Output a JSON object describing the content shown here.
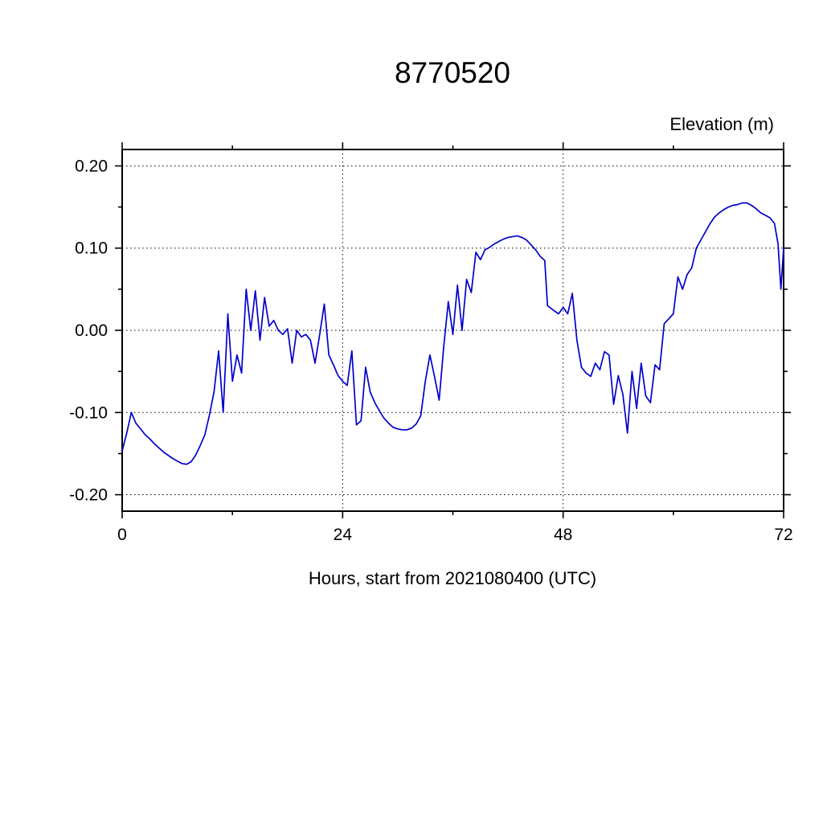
{
  "chart_data": {
    "type": "line",
    "title": "8770520",
    "ylabel": "Elevation (m)",
    "xlabel": "Hours, start from 2021080400 (UTC)",
    "xlim": [
      0,
      72
    ],
    "ylim": [
      -0.22,
      0.22
    ],
    "xticks": [
      0,
      24,
      48,
      72
    ],
    "xtick_labels": [
      "0",
      "24",
      "48",
      "72"
    ],
    "xminor": [
      12,
      36,
      60
    ],
    "yticks": [
      -0.2,
      -0.1,
      0.0,
      0.1,
      0.2
    ],
    "ytick_labels": [
      "-0.20",
      "-0.10",
      "0.00",
      "0.10",
      "0.20"
    ],
    "yminor": [
      -0.15,
      -0.05,
      0.05,
      0.15
    ],
    "grid": "dotted",
    "legend": "none",
    "line_color": "#0000cc",
    "frame_color": "#000000",
    "background": "#ffffff",
    "series": [
      {
        "name": "elevation",
        "points": [
          [
            0,
            -0.147
          ],
          [
            0.5,
            -0.125
          ],
          [
            1,
            -0.1
          ],
          [
            1.5,
            -0.113
          ],
          [
            2,
            -0.12
          ],
          [
            2.5,
            -0.127
          ],
          [
            3,
            -0.132
          ],
          [
            3.5,
            -0.138
          ],
          [
            4,
            -0.143
          ],
          [
            4.5,
            -0.148
          ],
          [
            5,
            -0.152
          ],
          [
            5.5,
            -0.156
          ],
          [
            6,
            -0.159
          ],
          [
            6.5,
            -0.162
          ],
          [
            7,
            -0.163
          ],
          [
            7.5,
            -0.16
          ],
          [
            8,
            -0.152
          ],
          [
            8.5,
            -0.14
          ],
          [
            9,
            -0.127
          ],
          [
            9.5,
            -0.103
          ],
          [
            10,
            -0.075
          ],
          [
            10.5,
            -0.025
          ],
          [
            11,
            -0.1
          ],
          [
            11.5,
            0.02
          ],
          [
            12,
            -0.062
          ],
          [
            12.5,
            -0.03
          ],
          [
            13,
            -0.052
          ],
          [
            13.5,
            0.05
          ],
          [
            14,
            0.0
          ],
          [
            14.5,
            0.048
          ],
          [
            15,
            -0.012
          ],
          [
            15.5,
            0.04
          ],
          [
            16,
            0.005
          ],
          [
            16.5,
            0.012
          ],
          [
            17,
            0.0
          ],
          [
            17.5,
            -0.005
          ],
          [
            18,
            0.002
          ],
          [
            18.5,
            -0.04
          ],
          [
            19,
            0.0
          ],
          [
            19.5,
            -0.008
          ],
          [
            20,
            -0.005
          ],
          [
            20.5,
            -0.012
          ],
          [
            21,
            -0.04
          ],
          [
            21.5,
            -0.005
          ],
          [
            22,
            0.032
          ],
          [
            22.5,
            -0.03
          ],
          [
            23,
            -0.042
          ],
          [
            23.5,
            -0.055
          ],
          [
            24,
            -0.062
          ],
          [
            24.5,
            -0.067
          ],
          [
            25,
            -0.025
          ],
          [
            25.5,
            -0.115
          ],
          [
            26,
            -0.11
          ],
          [
            26.5,
            -0.045
          ],
          [
            27,
            -0.075
          ],
          [
            27.5,
            -0.088
          ],
          [
            28,
            -0.098
          ],
          [
            28.5,
            -0.107
          ],
          [
            29,
            -0.113
          ],
          [
            29.5,
            -0.118
          ],
          [
            30,
            -0.12
          ],
          [
            30.5,
            -0.121
          ],
          [
            31,
            -0.121
          ],
          [
            31.5,
            -0.119
          ],
          [
            32,
            -0.114
          ],
          [
            32.5,
            -0.104
          ],
          [
            33,
            -0.062
          ],
          [
            33.5,
            -0.03
          ],
          [
            34,
            -0.056
          ],
          [
            34.5,
            -0.085
          ],
          [
            35,
            -0.02
          ],
          [
            35.5,
            0.035
          ],
          [
            36,
            -0.005
          ],
          [
            36.5,
            0.055
          ],
          [
            37,
            0.0
          ],
          [
            37.5,
            0.062
          ],
          [
            38,
            0.046
          ],
          [
            38.5,
            0.095
          ],
          [
            39,
            0.086
          ],
          [
            39.5,
            0.098
          ],
          [
            40,
            0.101
          ],
          [
            40.5,
            0.105
          ],
          [
            41,
            0.108
          ],
          [
            41.5,
            0.111
          ],
          [
            42,
            0.113
          ],
          [
            42.5,
            0.114
          ],
          [
            43,
            0.115
          ],
          [
            43.5,
            0.113
          ],
          [
            44,
            0.11
          ],
          [
            44.5,
            0.104
          ],
          [
            45,
            0.098
          ],
          [
            45.5,
            0.09
          ],
          [
            46,
            0.085
          ],
          [
            46.3,
            0.03
          ],
          [
            47,
            0.024
          ],
          [
            47.5,
            0.02
          ],
          [
            48,
            0.028
          ],
          [
            48.5,
            0.02
          ],
          [
            49,
            0.045
          ],
          [
            49.5,
            -0.012
          ],
          [
            50,
            -0.045
          ],
          [
            50.5,
            -0.052
          ],
          [
            51,
            -0.056
          ],
          [
            51.5,
            -0.04
          ],
          [
            52,
            -0.048
          ],
          [
            52.5,
            -0.026
          ],
          [
            53,
            -0.03
          ],
          [
            53.5,
            -0.09
          ],
          [
            54,
            -0.055
          ],
          [
            54.5,
            -0.078
          ],
          [
            55,
            -0.125
          ],
          [
            55.5,
            -0.05
          ],
          [
            56,
            -0.095
          ],
          [
            56.5,
            -0.04
          ],
          [
            57,
            -0.08
          ],
          [
            57.5,
            -0.088
          ],
          [
            58,
            -0.042
          ],
          [
            58.5,
            -0.048
          ],
          [
            59,
            0.008
          ],
          [
            59.5,
            0.014
          ],
          [
            60,
            0.02
          ],
          [
            60.5,
            0.065
          ],
          [
            61,
            0.05
          ],
          [
            61.5,
            0.068
          ],
          [
            62,
            0.076
          ],
          [
            62.5,
            0.1
          ],
          [
            63,
            0.11
          ],
          [
            63.5,
            0.12
          ],
          [
            64,
            0.13
          ],
          [
            64.5,
            0.138
          ],
          [
            65,
            0.143
          ],
          [
            65.5,
            0.147
          ],
          [
            66,
            0.15
          ],
          [
            66.5,
            0.152
          ],
          [
            67,
            0.153
          ],
          [
            67.5,
            0.155
          ],
          [
            68,
            0.155
          ],
          [
            68.5,
            0.152
          ],
          [
            69,
            0.148
          ],
          [
            69.5,
            0.143
          ],
          [
            70,
            0.14
          ],
          [
            70.5,
            0.137
          ],
          [
            71,
            0.13
          ],
          [
            71.4,
            0.105
          ],
          [
            71.7,
            0.05
          ],
          [
            72,
            0.1
          ]
        ]
      }
    ]
  }
}
